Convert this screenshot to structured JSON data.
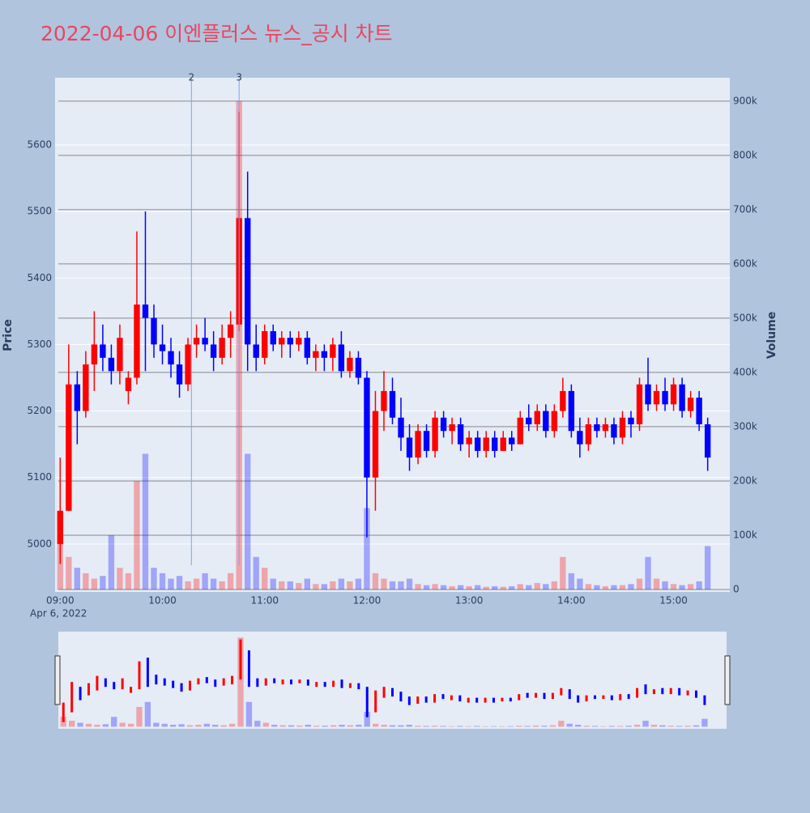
{
  "chart_data": {
    "type": "candlestick",
    "title": "2022-04-06 이엔플러스 뉴스_공시 차트",
    "x_date": "Apr 6, 2022",
    "y_title": "Price",
    "y2_title": "Volume",
    "increasing_color": "#ff0000",
    "decreasing_color": "#0000ff",
    "x": [
      "09:00",
      "09:05",
      "09:10",
      "09:15",
      "09:20",
      "09:25",
      "09:30",
      "09:35",
      "09:40",
      "09:45",
      "09:50",
      "09:55",
      "10:00",
      "10:05",
      "10:10",
      "10:15",
      "10:20",
      "10:25",
      "10:30",
      "10:35",
      "10:40",
      "10:45",
      "10:50",
      "10:55",
      "11:00",
      "11:05",
      "11:10",
      "11:15",
      "11:20",
      "11:25",
      "11:30",
      "11:35",
      "11:40",
      "11:45",
      "11:50",
      "11:55",
      "12:00",
      "12:05",
      "12:10",
      "12:15",
      "12:20",
      "12:25",
      "12:30",
      "12:35",
      "12:40",
      "12:45",
      "12:50",
      "12:55",
      "13:00",
      "13:05",
      "13:10",
      "13:15",
      "13:20",
      "13:25",
      "13:30",
      "13:35",
      "13:40",
      "13:45",
      "13:50",
      "13:55",
      "14:00",
      "14:05",
      "14:10",
      "14:15",
      "14:20",
      "14:25",
      "14:30",
      "14:35",
      "14:40",
      "14:45",
      "14:50",
      "14:55",
      "15:00",
      "15:05",
      "15:10",
      "15:15",
      "15:20"
    ],
    "open": [
      5000,
      5050,
      5240,
      5200,
      5270,
      5300,
      5280,
      5260,
      5230,
      5250,
      5360,
      5340,
      5300,
      5290,
      5270,
      5240,
      5300,
      5310,
      5300,
      5280,
      5310,
      5330,
      5490,
      5300,
      5280,
      5320,
      5300,
      5310,
      5300,
      5310,
      5280,
      5290,
      5280,
      5300,
      5260,
      5280,
      5250,
      5100,
      5200,
      5230,
      5190,
      5160,
      5130,
      5170,
      5140,
      5190,
      5170,
      5180,
      5150,
      5160,
      5140,
      5160,
      5140,
      5160,
      5150,
      5190,
      5180,
      5200,
      5170,
      5200,
      5230,
      5170,
      5150,
      5180,
      5170,
      5180,
      5160,
      5190,
      5180,
      5240,
      5210,
      5230,
      5210,
      5240,
      5200,
      5220,
      5180
    ],
    "high": [
      5130,
      5300,
      5260,
      5290,
      5350,
      5330,
      5300,
      5330,
      5260,
      5470,
      5500,
      5360,
      5330,
      5310,
      5290,
      5310,
      5330,
      5340,
      5320,
      5330,
      5350,
      5650,
      5560,
      5330,
      5330,
      5330,
      5320,
      5320,
      5320,
      5320,
      5300,
      5300,
      5310,
      5320,
      5290,
      5290,
      5260,
      5230,
      5260,
      5250,
      5220,
      5180,
      5180,
      5180,
      5200,
      5200,
      5190,
      5190,
      5170,
      5170,
      5170,
      5170,
      5170,
      5170,
      5200,
      5210,
      5210,
      5210,
      5210,
      5250,
      5240,
      5190,
      5190,
      5190,
      5190,
      5190,
      5200,
      5200,
      5250,
      5280,
      5240,
      5250,
      5250,
      5250,
      5230,
      5230,
      5190
    ],
    "low": [
      4970,
      5050,
      5150,
      5190,
      5230,
      5260,
      5240,
      5240,
      5210,
      5240,
      5260,
      5280,
      5270,
      5250,
      5220,
      5230,
      5280,
      5290,
      5260,
      5270,
      5280,
      5320,
      5260,
      5260,
      5270,
      5290,
      5280,
      5280,
      5290,
      5270,
      5260,
      5260,
      5260,
      5250,
      5250,
      5240,
      5010,
      5050,
      5170,
      5180,
      5140,
      5110,
      5120,
      5130,
      5130,
      5160,
      5150,
      5140,
      5130,
      5130,
      5130,
      5130,
      5140,
      5140,
      5150,
      5170,
      5170,
      5160,
      5160,
      5190,
      5160,
      5130,
      5140,
      5160,
      5160,
      5150,
      5150,
      5160,
      5170,
      5200,
      5200,
      5200,
      5200,
      5190,
      5190,
      5170,
      5110
    ],
    "close": [
      5050,
      5240,
      5200,
      5270,
      5300,
      5280,
      5260,
      5310,
      5250,
      5360,
      5340,
      5300,
      5290,
      5270,
      5240,
      5300,
      5310,
      5300,
      5280,
      5310,
      5330,
      5490,
      5300,
      5280,
      5320,
      5300,
      5310,
      5300,
      5310,
      5280,
      5290,
      5280,
      5300,
      5260,
      5280,
      5250,
      5100,
      5200,
      5230,
      5190,
      5160,
      5130,
      5170,
      5140,
      5190,
      5170,
      5180,
      5150,
      5160,
      5140,
      5160,
      5140,
      5160,
      5150,
      5190,
      5180,
      5200,
      5170,
      5200,
      5230,
      5170,
      5150,
      5180,
      5170,
      5180,
      5160,
      5190,
      5180,
      5240,
      5210,
      5230,
      5210,
      5240,
      5200,
      5220,
      5180,
      5130
    ],
    "volume": [
      100000,
      60000,
      40000,
      30000,
      20000,
      25000,
      100000,
      40000,
      30000,
      200000,
      250000,
      40000,
      30000,
      20000,
      25000,
      15000,
      20000,
      30000,
      20000,
      15000,
      30000,
      900000,
      250000,
      60000,
      40000,
      20000,
      15000,
      15000,
      12000,
      20000,
      10000,
      10000,
      15000,
      20000,
      15000,
      20000,
      150000,
      30000,
      20000,
      15000,
      15000,
      20000,
      10000,
      8000,
      10000,
      8000,
      6000,
      8000,
      6000,
      8000,
      5000,
      6000,
      5000,
      6000,
      10000,
      8000,
      12000,
      10000,
      15000,
      60000,
      30000,
      20000,
      10000,
      8000,
      6000,
      8000,
      8000,
      10000,
      20000,
      60000,
      20000,
      15000,
      10000,
      8000,
      10000,
      15000,
      80000
    ],
    "xlim": [
      "08:57",
      "15:33"
    ],
    "xticks": [
      "09:00",
      "10:00",
      "11:00",
      "12:00",
      "13:00",
      "14:00",
      "15:00"
    ],
    "ylim": [
      4928,
      5701
    ],
    "yticks": [
      5000,
      5100,
      5200,
      5300,
      5400,
      5500,
      5600
    ],
    "y2lim": [
      -4500,
      943000
    ],
    "y2ticks": [
      0,
      {
        "value": 100000,
        "label": "100k"
      },
      {
        "value": 200000,
        "label": "200k"
      },
      {
        "value": 300000,
        "label": "300k"
      },
      {
        "value": 400000,
        "label": "400k"
      },
      {
        "value": 500000,
        "label": "500k"
      },
      {
        "value": 600000,
        "label": "600k"
      },
      {
        "value": 700000,
        "label": "700k"
      },
      {
        "value": 800000,
        "label": "800k"
      },
      {
        "value": 900000,
        "label": "900k"
      }
    ],
    "annotations": [
      {
        "x": "10:17",
        "text": "2"
      },
      {
        "x": "10:45",
        "text": "3"
      }
    ],
    "grid": true
  }
}
